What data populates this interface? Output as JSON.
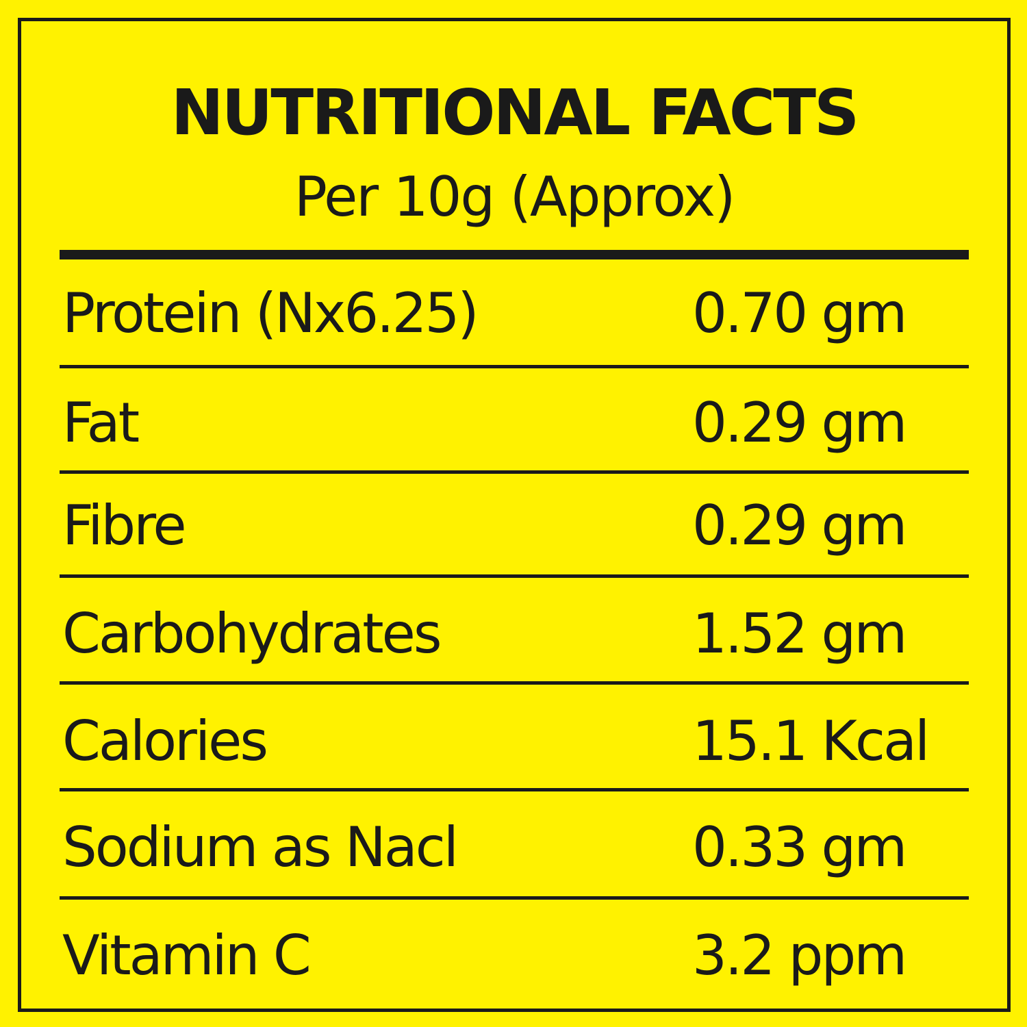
{
  "header": {
    "title": "NUTRITIONAL FACTS",
    "subtitle": "Per 10g (Approx)"
  },
  "table": {
    "rows": [
      [
        "Protein (Nx6.25)",
        "0.70 gm"
      ],
      [
        "Fat",
        "0.29 gm"
      ],
      [
        "Fibre",
        "0.29 gm"
      ],
      [
        "Carbohydrates",
        "1.52 gm"
      ],
      [
        "Calories",
        "15.1 Kcal"
      ],
      [
        "Sodium as Nacl",
        "0.33 gm"
      ],
      [
        "Vitamin C",
        "3.2 ppm"
      ]
    ]
  }
}
